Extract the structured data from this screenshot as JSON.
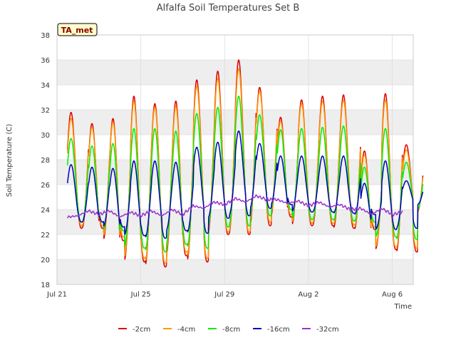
{
  "chart_data": {
    "type": "line",
    "title": "Alfalfa Soil Temperatures Set B",
    "xlabel": "Time",
    "ylabel": "Soil Temperature (C)",
    "site_badge": "TA_met",
    "ylim": [
      18,
      38
    ],
    "yticks": [
      18,
      20,
      22,
      24,
      26,
      28,
      30,
      32,
      34,
      36,
      38
    ],
    "xlim_days": [
      21,
      38
    ],
    "xticks": [
      {
        "day": 21,
        "label": "Jul 21"
      },
      {
        "day": 25,
        "label": "Jul 25"
      },
      {
        "day": 29,
        "label": "Jul 29"
      },
      {
        "day": 33,
        "label": "Aug 2"
      },
      {
        "day": 37,
        "label": "Aug 6"
      }
    ],
    "grid": true,
    "legend_position": "bottom",
    "colors": {
      "plot_band": "#eeeeee",
      "grid": "#dddddd",
      "badge_fill": "#ffffcc",
      "badge_text": "#880000"
    },
    "series": [
      {
        "name": "-2cm",
        "color": "#dd0000",
        "daily_max": [
          31.8,
          30.9,
          31.3,
          33.1,
          32.5,
          32.7,
          34.4,
          35.1,
          36.0,
          33.8,
          31.4,
          32.8,
          33.1,
          33.2,
          28.7,
          33.3,
          29.2
        ],
        "daily_min": [
          22.5,
          21.5,
          19.8,
          19.4,
          20.3,
          19.8,
          22.0,
          22.0,
          22.7,
          23.4,
          22.7,
          22.7,
          22.5,
          22.4,
          20.8,
          20.6,
          23.8
        ]
      },
      {
        "name": "-4cm",
        "color": "#ff9900",
        "daily_max": [
          31.3,
          30.6,
          31.0,
          32.7,
          32.2,
          32.3,
          33.9,
          34.5,
          35.3,
          33.5,
          31.1,
          32.5,
          32.7,
          32.8,
          28.4,
          32.8,
          28.8
        ],
        "daily_min": [
          22.7,
          21.8,
          20.1,
          19.7,
          20.6,
          20.1,
          22.2,
          22.2,
          23.0,
          23.6,
          22.9,
          22.9,
          22.8,
          22.6,
          21.0,
          20.9,
          23.9
        ]
      },
      {
        "name": "-8cm",
        "color": "#00ee00",
        "daily_max": [
          29.7,
          29.1,
          29.3,
          30.5,
          30.5,
          30.3,
          31.7,
          32.2,
          33.1,
          31.6,
          30.4,
          30.5,
          30.6,
          30.7,
          27.4,
          30.5,
          27.8
        ],
        "daily_min": [
          23.0,
          22.3,
          20.9,
          20.6,
          21.2,
          20.9,
          22.6,
          22.7,
          23.5,
          24.0,
          23.2,
          23.2,
          23.1,
          23.0,
          21.8,
          21.6,
          24.0
        ]
      },
      {
        "name": "-16cm",
        "color": "#0000bb",
        "daily_max": [
          27.6,
          27.4,
          27.3,
          27.9,
          27.9,
          27.8,
          29.0,
          29.4,
          30.3,
          29.3,
          28.3,
          28.3,
          28.3,
          28.3,
          26.1,
          27.9,
          26.3
        ],
        "daily_min": [
          23.0,
          22.6,
          21.9,
          21.7,
          22.3,
          22.1,
          23.3,
          23.5,
          24.1,
          24.4,
          23.8,
          23.8,
          23.7,
          23.6,
          22.4,
          22.5,
          24.4
        ]
      },
      {
        "name": "-32cm",
        "color": "#9933cc",
        "values": [
          23.4,
          23.5,
          23.9,
          23.6,
          23.9,
          23.4,
          23.8,
          23.5,
          23.9,
          23.5,
          24.0,
          23.6,
          24.3,
          24.1,
          24.6,
          24.4,
          24.9,
          24.6,
          25.1,
          24.8,
          24.8,
          24.5,
          24.7,
          24.3,
          24.6,
          24.2,
          24.4,
          24.0,
          24.1,
          23.6,
          24.1,
          23.6,
          23.8
        ]
      }
    ]
  }
}
